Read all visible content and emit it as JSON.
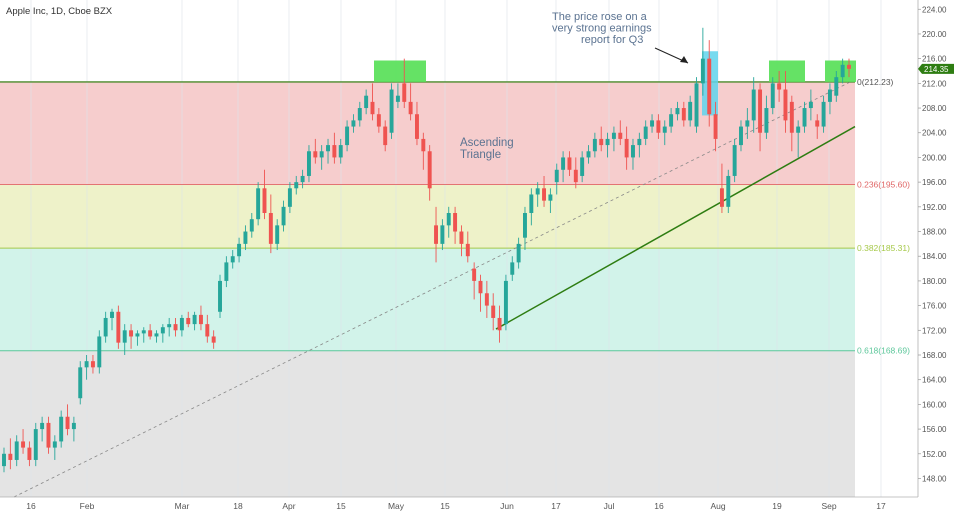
{
  "header": {
    "symbol_title": "Apple Inc, 1D, Cboe BZX"
  },
  "colors": {
    "up": "#26a69a",
    "down": "#ef5350",
    "zone_top": "#f6cdcd",
    "zone_236": "#eef2c9",
    "zone_382": "#d2f3ea",
    "zone_618": "#e4e4e4",
    "line_0": "#4a8a2a",
    "line_236": "#e06666",
    "line_382": "#a6c94a",
    "line_618": "#5dc79b",
    "trend_line": "#2e7d12",
    "diagonal": "#888888",
    "green_box": "#5de05d",
    "blue_box": "#5fd4ec",
    "price_tag": "#2e7d12",
    "annotation_text": "#5b7391"
  },
  "chart_data": {
    "type": "candlestick",
    "title": "Apple Inc, 1D, Cboe BZX",
    "x_tick_labels": [
      "16",
      "Feb",
      "Mar",
      "18",
      "Apr",
      "15",
      "May",
      "15",
      "Jun",
      "17",
      "Jul",
      "16",
      "Aug",
      "19",
      "Sep",
      "17"
    ],
    "y_tick_labels": [
      "148.00",
      "152.00",
      "156.00",
      "160.00",
      "164.00",
      "168.00",
      "172.00",
      "176.00",
      "180.00",
      "184.00",
      "188.00",
      "192.00",
      "196.00",
      "200.00",
      "204.00",
      "208.00",
      "212.00",
      "216.00",
      "220.00",
      "224.00"
    ],
    "ylim": [
      145,
      225.5
    ],
    "y_ticks": [
      148,
      152,
      156,
      160,
      164,
      168,
      172,
      176,
      180,
      184,
      188,
      192,
      196,
      200,
      204,
      208,
      212,
      216,
      220,
      224
    ],
    "last_price_label": "214.35",
    "last_price": 214.35,
    "fib_levels": [
      {
        "label": "0(212.23)",
        "value": 212.23
      },
      {
        "label": "0.236(195.60)",
        "value": 195.6
      },
      {
        "label": "0.382(185.31)",
        "value": 185.31
      },
      {
        "label": "0.618(168.69)",
        "value": 168.69
      }
    ],
    "annotations": [
      {
        "lines": [
          "The price rose on a",
          "very strong earnings",
          "report for Q3"
        ]
      },
      {
        "lines": [
          "Ascending",
          "Triangle"
        ]
      }
    ],
    "candles": [
      [
        150,
        153,
        149,
        152
      ],
      [
        152,
        154.5,
        149.5,
        151
      ],
      [
        151,
        155,
        150,
        154
      ],
      [
        154,
        156,
        152,
        153
      ],
      [
        153,
        154,
        150,
        151
      ],
      [
        151,
        157,
        150,
        156
      ],
      [
        156,
        158,
        154,
        157
      ],
      [
        157,
        158,
        152,
        153
      ],
      [
        153,
        155,
        151,
        154
      ],
      [
        154,
        159,
        153,
        158
      ],
      [
        158,
        160,
        155,
        156
      ],
      [
        156,
        158,
        154,
        157
      ],
      [
        161,
        167,
        160,
        166
      ],
      [
        166,
        168,
        164,
        167
      ],
      [
        167,
        168,
        165,
        166
      ],
      [
        166,
        172,
        165,
        171
      ],
      [
        171,
        175,
        170,
        174
      ],
      [
        174,
        175.5,
        172,
        175
      ],
      [
        175,
        176,
        169,
        170
      ],
      [
        170,
        173,
        168,
        172
      ],
      [
        172,
        173,
        169,
        171
      ],
      [
        171,
        172,
        169.5,
        171.5
      ],
      [
        171.5,
        172.5,
        170,
        172
      ],
      [
        172,
        173,
        170.5,
        171
      ],
      [
        171,
        172,
        170,
        171.5
      ],
      [
        171.5,
        173,
        170,
        172.5
      ],
      [
        172.5,
        174,
        171,
        173
      ],
      [
        173,
        174,
        171,
        172
      ],
      [
        172,
        174.5,
        171,
        174
      ],
      [
        174,
        175,
        172.5,
        173
      ],
      [
        173,
        175,
        172,
        174.5
      ],
      [
        174.5,
        176,
        172,
        173
      ],
      [
        173,
        174.5,
        170,
        171
      ],
      [
        171,
        172,
        169,
        170
      ],
      [
        175,
        181,
        174,
        180
      ],
      [
        180,
        184,
        179,
        183
      ],
      [
        183,
        185,
        182,
        184
      ],
      [
        184,
        187,
        183,
        186
      ],
      [
        186,
        189,
        185,
        188
      ],
      [
        188,
        191,
        187,
        190
      ],
      [
        190,
        196,
        189,
        195
      ],
      [
        195,
        198,
        190,
        191
      ],
      [
        191,
        194,
        184.5,
        186
      ],
      [
        186,
        190,
        185,
        189
      ],
      [
        189,
        193,
        188,
        192
      ],
      [
        192,
        196,
        191,
        195
      ],
      [
        195,
        197,
        194,
        196
      ],
      [
        196,
        198,
        195,
        197
      ],
      [
        197,
        202,
        196,
        201
      ],
      [
        201,
        203,
        199,
        200
      ],
      [
        200,
        202,
        198,
        201
      ],
      [
        201,
        203,
        199,
        202
      ],
      [
        202,
        204,
        199,
        200
      ],
      [
        200,
        203,
        199,
        202
      ],
      [
        202,
        206,
        201,
        205
      ],
      [
        205,
        207,
        204,
        206
      ],
      [
        206,
        209,
        205,
        208
      ],
      [
        208,
        211,
        207,
        210
      ],
      [
        209,
        212,
        206,
        207
      ],
      [
        207,
        208,
        204,
        205
      ],
      [
        205,
        206,
        201,
        202
      ],
      [
        204,
        212,
        203,
        211
      ],
      [
        209,
        212,
        208,
        210
      ],
      [
        212,
        216,
        208,
        209
      ],
      [
        209,
        212,
        206,
        207
      ],
      [
        207,
        209,
        202,
        203
      ],
      [
        203,
        204,
        198,
        201
      ],
      [
        201,
        202,
        193,
        195
      ],
      [
        189,
        192,
        183,
        186
      ],
      [
        186,
        190,
        185,
        189
      ],
      [
        189,
        192,
        187,
        191
      ],
      [
        191,
        192,
        186,
        188
      ],
      [
        188,
        189,
        184,
        186
      ],
      [
        186,
        188,
        183,
        184
      ],
      [
        182,
        183,
        177,
        180
      ],
      [
        180,
        181,
        175,
        178
      ],
      [
        178,
        180,
        174,
        176
      ],
      [
        176,
        178,
        172,
        174
      ],
      [
        174,
        176,
        170,
        172
      ],
      [
        173,
        181,
        172,
        180
      ],
      [
        181,
        184,
        180,
        183
      ],
      [
        183,
        187,
        182,
        186
      ],
      [
        187,
        192,
        185,
        191
      ],
      [
        191,
        195,
        189,
        194
      ],
      [
        194,
        196,
        192,
        195
      ],
      [
        195,
        197,
        192,
        193
      ],
      [
        193,
        195,
        191,
        194
      ],
      [
        196,
        199,
        194,
        198
      ],
      [
        198,
        201,
        196,
        200
      ],
      [
        200,
        201,
        197,
        198
      ],
      [
        198,
        200,
        195,
        196
      ],
      [
        197,
        201,
        196,
        200
      ],
      [
        200,
        202,
        199,
        201
      ],
      [
        201,
        204,
        200,
        203
      ],
      [
        203,
        205,
        201,
        202
      ],
      [
        202,
        204,
        200,
        203
      ],
      [
        203,
        205,
        201,
        204
      ],
      [
        204,
        206,
        202,
        203
      ],
      [
        203,
        205,
        198,
        200
      ],
      [
        200,
        203,
        198,
        202
      ],
      [
        202,
        204,
        200,
        203
      ],
      [
        203,
        206,
        202,
        205
      ],
      [
        205,
        207,
        204,
        206
      ],
      [
        206,
        207,
        203,
        204
      ],
      [
        204,
        206,
        202,
        205
      ],
      [
        205,
        208,
        204,
        207
      ],
      [
        207,
        209,
        206,
        208
      ],
      [
        208,
        209,
        205,
        206
      ],
      [
        206,
        210,
        205,
        209
      ],
      [
        205,
        213,
        204,
        212
      ],
      [
        212,
        221,
        210,
        216
      ],
      [
        216,
        219,
        205,
        207
      ],
      [
        207,
        209,
        201,
        203
      ],
      [
        195,
        199,
        191,
        192
      ],
      [
        192,
        198,
        191,
        197
      ],
      [
        197,
        203,
        196,
        202
      ],
      [
        202,
        206,
        201,
        205
      ],
      [
        205,
        208,
        203,
        206
      ],
      [
        206,
        213,
        204,
        211
      ],
      [
        211,
        212,
        201,
        204
      ],
      [
        204,
        210,
        203,
        208
      ],
      [
        208,
        213,
        207,
        212
      ],
      [
        212,
        214,
        209,
        211
      ],
      [
        211,
        214,
        204,
        206
      ],
      [
        209,
        210,
        201,
        204
      ],
      [
        204,
        206,
        200,
        205
      ],
      [
        205,
        209,
        204,
        208
      ],
      [
        208,
        211,
        206,
        209
      ],
      [
        206,
        207,
        203,
        205
      ],
      [
        205,
        210,
        204,
        209
      ],
      [
        209,
        212,
        207,
        211
      ],
      [
        210,
        214,
        209,
        213
      ],
      [
        213,
        216,
        212,
        215
      ],
      [
        215,
        216,
        213,
        214.35
      ]
    ]
  }
}
